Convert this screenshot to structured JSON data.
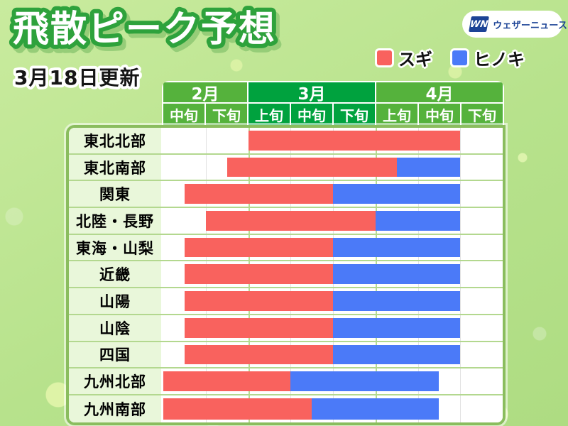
{
  "header": {
    "title": "飛散ピーク予想",
    "updated": "3月18日更新"
  },
  "logo": {
    "mark": "WN",
    "text": "ウェザーニュース"
  },
  "legend": {
    "items": [
      {
        "label": "スギ",
        "color": "#f9625e"
      },
      {
        "label": "ヒノキ",
        "color": "#4b7af8"
      }
    ]
  },
  "calendar": {
    "months": [
      {
        "label": "2月",
        "periods": [
          "中旬",
          "下旬"
        ],
        "highlight": false
      },
      {
        "label": "3月",
        "periods": [
          "上旬",
          "中旬",
          "下旬"
        ],
        "highlight": true
      },
      {
        "label": "4月",
        "periods": [
          "上旬",
          "中旬",
          "下旬"
        ],
        "highlight": false
      }
    ]
  },
  "chart_data": {
    "type": "bar",
    "subtype": "horizontal-range-gantt",
    "title": "飛散ピーク予想",
    "updated": "3月18日更新",
    "columns": [
      "2月中旬",
      "2月下旬",
      "3月上旬",
      "3月中旬",
      "3月下旬",
      "4月上旬",
      "4月中旬",
      "4月下旬"
    ],
    "month_boundaries": [
      2,
      5
    ],
    "axis_unit": "10-day period index (0 = start of 2月中旬, 8 = end of 4月下旬)",
    "series": [
      {
        "name": "スギ",
        "color": "#f9625e"
      },
      {
        "name": "ヒノキ",
        "color": "#4b7af8"
      }
    ],
    "rows": [
      {
        "region": "東北北部",
        "sugi": [
          2,
          7
        ],
        "hinoki": null
      },
      {
        "region": "東北南部",
        "sugi": [
          1.5,
          5.5
        ],
        "hinoki": [
          5.5,
          7
        ]
      },
      {
        "region": "関東",
        "sugi": [
          0.5,
          4
        ],
        "hinoki": [
          4,
          7
        ]
      },
      {
        "region": "北陸・長野",
        "sugi": [
          1,
          5
        ],
        "hinoki": [
          5,
          7
        ]
      },
      {
        "region": "東海・山梨",
        "sugi": [
          0.5,
          4
        ],
        "hinoki": [
          4,
          7
        ]
      },
      {
        "region": "近畿",
        "sugi": [
          0.5,
          4
        ],
        "hinoki": [
          4,
          7
        ]
      },
      {
        "region": "山陽",
        "sugi": [
          0.5,
          4
        ],
        "hinoki": [
          4,
          7
        ]
      },
      {
        "region": "山陰",
        "sugi": [
          0.5,
          4
        ],
        "hinoki": [
          4,
          7
        ]
      },
      {
        "region": "四国",
        "sugi": [
          0.5,
          4
        ],
        "hinoki": [
          4,
          7
        ]
      },
      {
        "region": "九州北部",
        "sugi": [
          0,
          3
        ],
        "hinoki": [
          3,
          6.5
        ]
      },
      {
        "region": "九州南部",
        "sugi": [
          0,
          3.5
        ],
        "hinoki": [
          3.5,
          6.5
        ]
      }
    ]
  },
  "colors": {
    "sugi": "#f9625e",
    "hinoki": "#4b7af8",
    "month_green": "#55b23c",
    "month_green_dark": "#00a23e",
    "table_border": "#8abd5e",
    "row_separator": "#b3d88f",
    "label_bg": "#e9f7da",
    "title_outline": "#2ea23c",
    "title_shadow": "#96cd78",
    "logo_blue": "#1c4396",
    "grid_line": "#e2e2e2",
    "month_line": "#b7dc92"
  }
}
